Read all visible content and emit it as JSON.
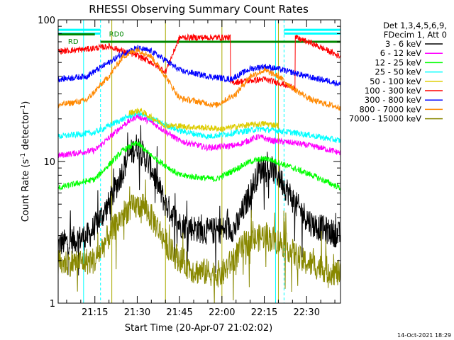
{
  "chart_data": {
    "type": "line",
    "title": "RHESSI Observing Summary Count Rates",
    "xlabel": "Start Time (20-Apr-07 21:02:02)",
    "ylabel_main": "Count Rate (s",
    "ylabel_sup": "-1",
    "ylabel_rest": " detector",
    "ylabel_sup2": "-1",
    "ylabel_close": ")",
    "yscale": "log",
    "ylim": [
      1,
      100
    ],
    "y_ticks": [
      {
        "value": 1,
        "label": "1"
      },
      {
        "value": 10,
        "label": "10"
      },
      {
        "value": 100,
        "label": "100"
      }
    ],
    "x_time_range": [
      "21:02",
      "22:42"
    ],
    "x_ticks": [
      "21:15",
      "21:30",
      "21:45",
      "22:00",
      "22:15",
      "22:30"
    ],
    "x_tick_minutes": [
      795,
      810,
      825,
      840,
      855,
      870
    ],
    "x_start_minute": 782,
    "x_end_minute": 882,
    "legend_header": [
      "Det 1,3,4,5,6,9,",
      "FDecim 1, Att 0"
    ],
    "legend_position": "right",
    "series": [
      {
        "name": "3 - 6 keV",
        "color": "#000000"
      },
      {
        "name": "6 - 12 keV",
        "color": "#ff00ff"
      },
      {
        "name": "12 - 25 keV",
        "color": "#00ff00"
      },
      {
        "name": "25 - 50 keV",
        "color": "#00ffff"
      },
      {
        "name": "50 - 100 keV",
        "color": "#ddcc00"
      },
      {
        "name": "100 - 300 keV",
        "color": "#ff0000"
      },
      {
        "name": "300 - 800 keV",
        "color": "#0000ff"
      },
      {
        "name": "800 - 7000 keV",
        "color": "#ff8800"
      },
      {
        "name": "7000 - 15000 keV",
        "color": "#888800"
      }
    ],
    "profiles": [
      {
        "key": "k3_6",
        "color": "#000000",
        "points": [
          [
            782,
            2.6
          ],
          [
            793,
            3.0
          ],
          [
            800,
            5.0
          ],
          [
            807,
            11
          ],
          [
            810,
            13
          ],
          [
            815,
            9
          ],
          [
            820,
            5
          ],
          [
            825,
            3.6
          ],
          [
            835,
            3.2
          ],
          [
            845,
            3.4
          ],
          [
            850,
            6
          ],
          [
            853,
            8.5
          ],
          [
            856,
            9
          ],
          [
            860,
            8
          ],
          [
            866,
            5
          ],
          [
            872,
            3.6
          ],
          [
            878,
            3.2
          ],
          [
            882,
            3.0
          ]
        ]
      },
      {
        "key": "k6_12",
        "color": "#ff00ff",
        "points": [
          [
            782,
            11
          ],
          [
            795,
            12
          ],
          [
            805,
            18
          ],
          [
            810,
            21
          ],
          [
            815,
            19
          ],
          [
            825,
            14
          ],
          [
            835,
            12.5
          ],
          [
            845,
            13
          ],
          [
            853,
            15
          ],
          [
            858,
            14
          ],
          [
            866,
            13.5
          ],
          [
            875,
            12.5
          ],
          [
            882,
            11.5
          ]
        ]
      },
      {
        "key": "k12_25",
        "color": "#00ff00",
        "points": [
          [
            782,
            6.5
          ],
          [
            795,
            7.5
          ],
          [
            805,
            12
          ],
          [
            810,
            13.5
          ],
          [
            815,
            11
          ],
          [
            825,
            8
          ],
          [
            838,
            7.5
          ],
          [
            850,
            10
          ],
          [
            856,
            10.5
          ],
          [
            862,
            9.5
          ],
          [
            872,
            8
          ],
          [
            882,
            6.5
          ]
        ]
      },
      {
        "key": "k25_50",
        "color": "#00ffff",
        "points": [
          [
            782,
            15
          ],
          [
            795,
            16
          ],
          [
            805,
            20
          ],
          [
            810,
            22
          ],
          [
            815,
            20
          ],
          [
            825,
            16.5
          ],
          [
            835,
            15
          ],
          [
            845,
            16
          ],
          [
            853,
            17
          ],
          [
            860,
            16.5
          ],
          [
            870,
            15.5
          ],
          [
            882,
            14
          ]
        ]
      },
      {
        "key": "k50_100",
        "color": "#ddcc00",
        "points": [
          [
            807,
            22
          ],
          [
            811,
            23
          ],
          [
            814,
            21
          ],
          [
            820,
            18
          ],
          [
            840,
            17
          ],
          [
            848,
            18
          ],
          [
            855,
            18.5
          ],
          [
            860,
            18
          ]
        ]
      },
      {
        "key": "k100_300",
        "color": "#ff0000",
        "points": [
          [
            782,
            60
          ],
          [
            792,
            62
          ],
          [
            800,
            65
          ],
          [
            805,
            60
          ],
          [
            810,
            56
          ],
          [
            815,
            50
          ],
          [
            820,
            43
          ],
          [
            825,
            75
          ],
          [
            843,
            75
          ],
          [
            843,
            36
          ],
          [
            848,
            37
          ],
          [
            855,
            38
          ],
          [
            860,
            36
          ],
          [
            866,
            33
          ],
          [
            866,
            75
          ],
          [
            872,
            68
          ],
          [
            878,
            60
          ],
          [
            882,
            55
          ]
        ]
      },
      {
        "key": "k300_800",
        "color": "#0000ff",
        "points": [
          [
            782,
            38
          ],
          [
            792,
            40
          ],
          [
            800,
            50
          ],
          [
            805,
            58
          ],
          [
            810,
            63
          ],
          [
            815,
            60
          ],
          [
            820,
            52
          ],
          [
            825,
            44
          ],
          [
            835,
            40
          ],
          [
            843,
            38
          ],
          [
            850,
            45
          ],
          [
            855,
            47
          ],
          [
            860,
            45
          ],
          [
            866,
            42
          ],
          [
            872,
            39
          ],
          [
            878,
            37
          ],
          [
            882,
            35
          ]
        ]
      },
      {
        "key": "k800_7000",
        "color": "#ff8800",
        "points": [
          [
            782,
            25
          ],
          [
            792,
            27
          ],
          [
            800,
            40
          ],
          [
            805,
            55
          ],
          [
            810,
            62
          ],
          [
            815,
            55
          ],
          [
            820,
            40
          ],
          [
            825,
            28
          ],
          [
            838,
            25
          ],
          [
            845,
            30
          ],
          [
            850,
            40
          ],
          [
            855,
            44
          ],
          [
            860,
            40
          ],
          [
            866,
            32
          ],
          [
            872,
            27
          ],
          [
            882,
            24
          ]
        ]
      },
      {
        "key": "k7000_15000",
        "color": "#888800",
        "points": [
          [
            782,
            1.9
          ],
          [
            795,
            2.0
          ],
          [
            800,
            3.0
          ],
          [
            806,
            4.5
          ],
          [
            812,
            5.0
          ],
          [
            817,
            3.5
          ],
          [
            822,
            2.3
          ],
          [
            830,
            1.7
          ],
          [
            840,
            1.6
          ],
          [
            848,
            2.6
          ],
          [
            855,
            3.0
          ],
          [
            862,
            2.6
          ],
          [
            868,
            2.0
          ],
          [
            878,
            1.7
          ],
          [
            882,
            1.6
          ]
        ]
      }
    ],
    "annotations": [
      "RD",
      "RD0"
    ],
    "markers": {
      "cyan_vertical_solid_min": [
        791,
        859
      ],
      "cyan_vertical_dashed_min": [
        797,
        862
      ],
      "olive_vertical_min": [
        801,
        820,
        840,
        860
      ],
      "rd_segments": [
        {
          "from": 782,
          "to": 797,
          "level": 85,
          "color": "#00ffff"
        },
        {
          "from": 782,
          "to": 797,
          "level": 80,
          "color": "#00ffff"
        },
        {
          "from": 862,
          "to": 882,
          "level": 85,
          "color": "#00ffff"
        },
        {
          "from": 862,
          "to": 882,
          "level": 80,
          "color": "#00ffff"
        },
        {
          "from": 782,
          "to": 795,
          "level": 79,
          "color": "#008800"
        },
        {
          "from": 797,
          "to": 882,
          "level": 70,
          "color": "#008800"
        }
      ]
    },
    "grid": false
  },
  "stamp": "14-Oct-2021 18:29"
}
